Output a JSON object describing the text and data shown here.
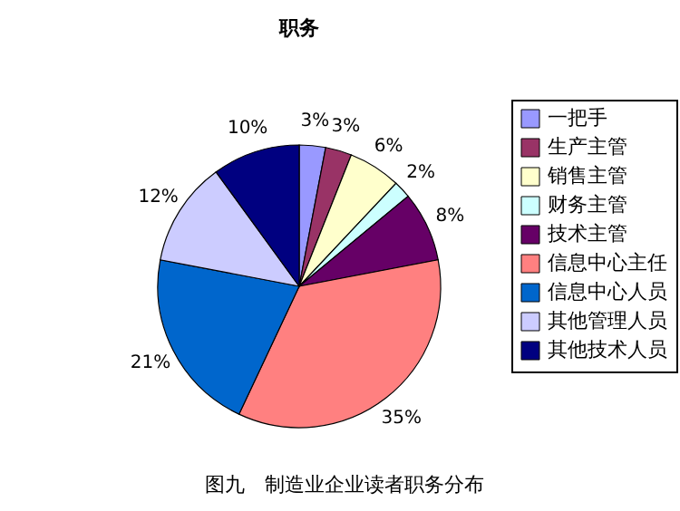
{
  "chart_data": {
    "type": "pie",
    "title": "职务",
    "categories": [
      "一把手",
      "生产主管",
      "销售主管",
      "财务主管",
      "技术主管",
      "信息中心主任",
      "信息中心人员",
      "其他管理人员",
      "其他技术人员"
    ],
    "values": [
      3,
      3,
      6,
      2,
      8,
      35,
      21,
      12,
      10
    ],
    "colors": [
      "#9999ff",
      "#993366",
      "#ffffcc",
      "#ccffff",
      "#660066",
      "#ff8080",
      "#0066cc",
      "#ccccff",
      "#000080"
    ],
    "value_labels": [
      "3%",
      "3%",
      "6%",
      "2%",
      "8%",
      "35%",
      "21%",
      "12%",
      "10%"
    ],
    "legend": "right",
    "annotations": [
      "图九　制造业企业读者职务分布"
    ]
  }
}
